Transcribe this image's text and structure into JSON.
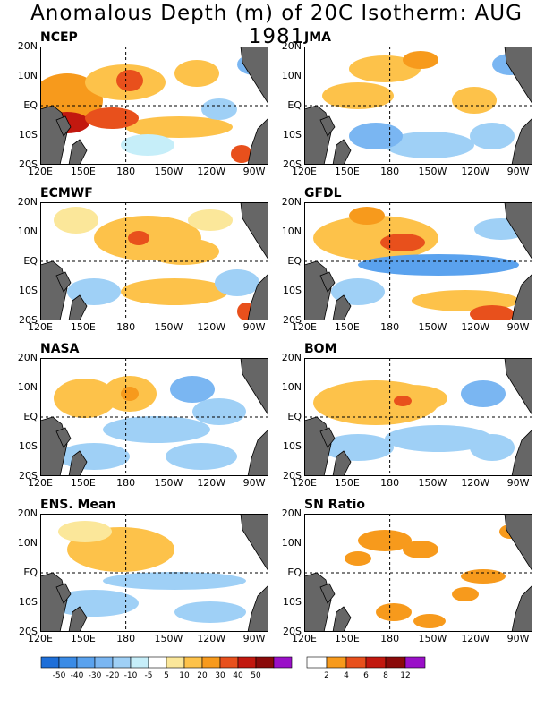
{
  "title": "Anomalous Depth (m) of 20C Isotherm: AUG 1981",
  "y_ticks": [
    "20N",
    "10N",
    "EQ",
    "10S",
    "20S"
  ],
  "x_ticks": [
    "120E",
    "150E",
    "180",
    "150W",
    "120W",
    "90W"
  ],
  "panels": [
    {
      "label": "NCEP"
    },
    {
      "label": "JMA"
    },
    {
      "label": "ECMWF"
    },
    {
      "label": "GFDL"
    },
    {
      "label": "NASA"
    },
    {
      "label": "BOM"
    },
    {
      "label": "ENS. Mean"
    },
    {
      "label": "SN Ratio"
    }
  ],
  "colorbar_depth": {
    "labels": [
      "-50",
      "-40",
      "-30",
      "-20",
      "-10",
      "-5",
      "5",
      "10",
      "20",
      "30",
      "40",
      "50"
    ],
    "colors": [
      "#1e6fd9",
      "#3a8be6",
      "#5aa2ee",
      "#7ab6f2",
      "#9fd0f6",
      "#c6eef9",
      "#ffffff",
      "#fbe79a",
      "#fdc24a",
      "#f79a1c",
      "#e8501c",
      "#c2180f",
      "#8a0a0a",
      "#9a10c8"
    ]
  },
  "colorbar_sn": {
    "labels": [
      "2",
      "4",
      "6",
      "8",
      "12"
    ],
    "colors": [
      "#ffffff",
      "#f79a1c",
      "#e8501c",
      "#c2180f",
      "#8a0a0a",
      "#9a10c8"
    ]
  },
  "land_color": "#666666"
}
